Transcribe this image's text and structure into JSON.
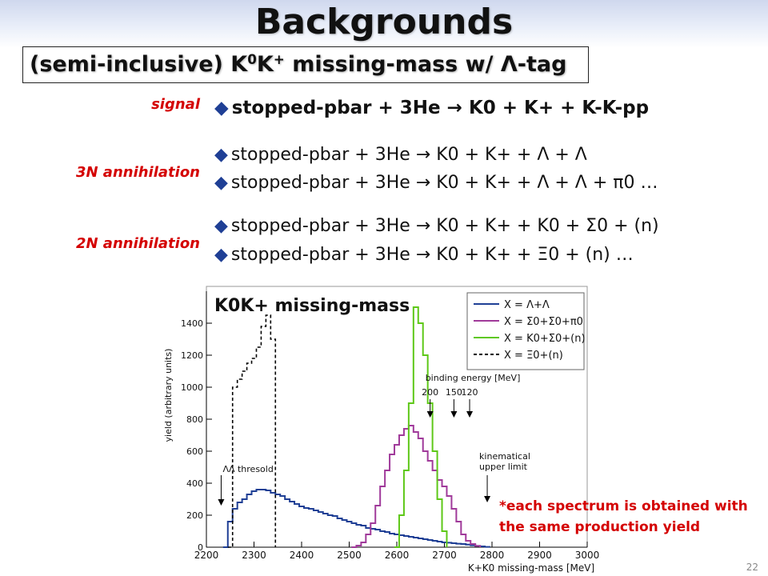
{
  "title": "Backgrounds",
  "subtitle": {
    "prefix": "(semi-inclusive) K",
    "sup1": "0",
    "mid": "K",
    "sup2": "+",
    "suffix": " missing-mass w/ Λ-tag"
  },
  "categories": {
    "signal": "signal",
    "three_n": "3N annihilation",
    "two_n": "2N annihilation"
  },
  "reactions": [
    "stopped-pbar + 3He → K0 + K+ + K-K-pp",
    "stopped-pbar + 3He → K0 + K+ + Λ + Λ",
    "stopped-pbar + 3He → K0 + K+ + Λ + Λ + π0 …",
    "stopped-pbar + 3He → K0 + K+ + K0 + Σ0 + (n)",
    "stopped-pbar + 3He → K0 + K+ + Ξ0 + (n) …"
  ],
  "plot_label": "K0K+ missing-mass",
  "note": {
    "line1": "*each spectrum is obtained with",
    "line2": "the same production yield"
  },
  "page_number": "22",
  "chart_data": {
    "type": "line",
    "xlabel": "K+K0 missing-mass [MeV]",
    "ylabel": "yield (arbitrary units)",
    "xlim": [
      2200,
      3000
    ],
    "ylim": [
      0,
      1500
    ],
    "x_ticks": [
      2200,
      2300,
      2400,
      2500,
      2600,
      2700,
      2800,
      2900,
      3000
    ],
    "y_ticks": [
      0,
      200,
      400,
      600,
      800,
      1000,
      1200,
      1400
    ],
    "grid": false,
    "legend_position": "top-right",
    "series": [
      {
        "name": "X = Λ+Λ",
        "color": "#1f3f95",
        "style": "solid",
        "x": [
          2235,
          2245,
          2255,
          2265,
          2275,
          2285,
          2295,
          2305,
          2315,
          2325,
          2335,
          2345,
          2355,
          2365,
          2375,
          2385,
          2395,
          2405,
          2415,
          2425,
          2435,
          2445,
          2455,
          2465,
          2475,
          2485,
          2495,
          2505,
          2515,
          2525,
          2535,
          2545,
          2555,
          2565,
          2575,
          2585,
          2595,
          2605,
          2615,
          2625,
          2635,
          2645,
          2655,
          2665,
          2675,
          2685,
          2695,
          2705,
          2715,
          2725,
          2735,
          2745,
          2755,
          2765,
          2775,
          2785,
          2795
        ],
        "y": [
          0,
          160,
          240,
          280,
          300,
          330,
          350,
          360,
          360,
          355,
          340,
          330,
          320,
          300,
          285,
          270,
          255,
          245,
          240,
          230,
          220,
          210,
          200,
          195,
          180,
          170,
          160,
          150,
          140,
          135,
          120,
          115,
          110,
          100,
          95,
          85,
          80,
          75,
          70,
          65,
          60,
          55,
          50,
          45,
          40,
          35,
          30,
          28,
          25,
          22,
          20,
          16,
          12,
          8,
          5,
          2,
          0
        ]
      },
      {
        "name": "X = Σ0+Σ0+π0",
        "color": "#a03a9a",
        "style": "solid",
        "x": [
          2505,
          2515,
          2525,
          2535,
          2545,
          2555,
          2565,
          2575,
          2585,
          2595,
          2605,
          2615,
          2625,
          2635,
          2645,
          2655,
          2665,
          2675,
          2685,
          2695,
          2705,
          2715,
          2725,
          2735,
          2745,
          2755,
          2765,
          2775
        ],
        "y": [
          0,
          10,
          30,
          80,
          150,
          260,
          380,
          480,
          580,
          640,
          700,
          740,
          760,
          720,
          680,
          600,
          540,
          480,
          420,
          380,
          320,
          240,
          160,
          80,
          40,
          20,
          8,
          0
        ]
      },
      {
        "name": "X = K0+Σ0+(n)",
        "color": "#5ec818",
        "style": "solid",
        "x": [
          2595,
          2605,
          2615,
          2625,
          2635,
          2645,
          2655,
          2665,
          2675,
          2685,
          2695,
          2705
        ],
        "y": [
          0,
          200,
          480,
          900,
          1500,
          1400,
          1200,
          900,
          600,
          300,
          100,
          0
        ]
      },
      {
        "name": "X = Ξ0+(n)",
        "color": "#000000",
        "style": "dashed",
        "x": [
          2245,
          2255,
          2265,
          2275,
          2285,
          2295,
          2305,
          2315,
          2325,
          2335,
          2345
        ],
        "y": [
          0,
          1000,
          1050,
          1100,
          1150,
          1180,
          1250,
          1380,
          1450,
          1300,
          0
        ]
      }
    ],
    "annotations": [
      {
        "text": "ΛΛ thresold",
        "x": 2231
      },
      {
        "text": "binding energy [MeV]",
        "x": 2660
      },
      {
        "text": "200",
        "x": 2670
      },
      {
        "text": "150",
        "x": 2720
      },
      {
        "text": "120",
        "x": 2753
      },
      {
        "text": "kinematical upper limit",
        "x": 2790
      }
    ]
  }
}
